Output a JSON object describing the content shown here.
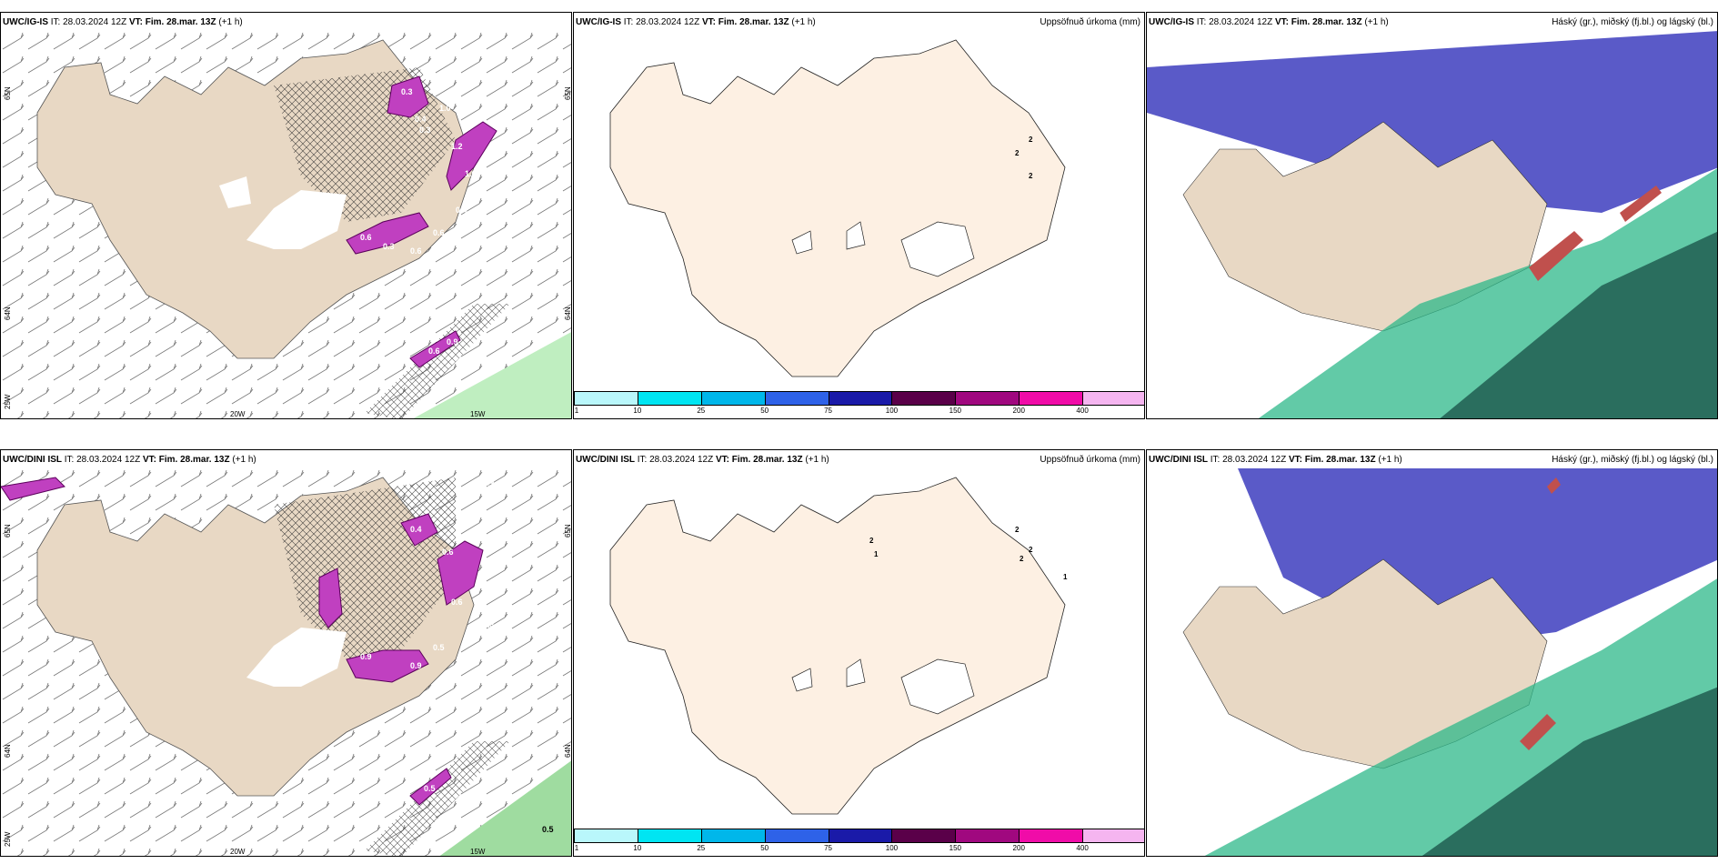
{
  "common": {
    "it": "IT: 28.03.2024 12Z",
    "vt_label": "VT:",
    "vt": "Fim. 28.mar. 13Z",
    "lead": "(+1 h)"
  },
  "rows": [
    {
      "model": "UWC/IG-IS"
    },
    {
      "model": "UWC/DINI ISL"
    }
  ],
  "precip_title": "Uppsöfnuð úrkoma (mm)",
  "cloud_title": "Háský (gr.), miðský (fj.bl.) og lágský (bl.)",
  "lon_labels": [
    "20W",
    "15W"
  ],
  "lat_labels_left": [
    "65N",
    "64N",
    "25W"
  ],
  "lat_labels_right": [
    "65N",
    "64N"
  ],
  "colorbar": {
    "ticks": [
      "1",
      "10",
      "25",
      "50",
      "75",
      "100",
      "150",
      "200",
      "400"
    ],
    "colors": [
      "#b9f7fb",
      "#00e5f2",
      "#00b7ea",
      "#2e62e8",
      "#1a1aa8",
      "#5a0049",
      "#a0087f",
      "#f00ca8",
      "#f5b5f0"
    ]
  },
  "snow_labels_top": [
    "0.3",
    "1.0",
    "0.4",
    "0.3",
    "1.6",
    "1.2",
    "0.6",
    "0.6",
    "0.3",
    "0.6",
    "0.4",
    "0.9",
    "0.6"
  ],
  "snow_labels_bottom": [
    "0.3",
    "0.4",
    "0.6",
    "0.9",
    "0.5",
    "0.9",
    "0.6",
    "0.3",
    "0.5",
    "0.5"
  ],
  "precip_values_top": [
    "2",
    "2",
    "2"
  ],
  "precip_values_bottom": [
    "2",
    "1",
    "2",
    "2",
    "2",
    "1"
  ],
  "colors": {
    "land": "#e8d8c4",
    "precip_land": "#fdf0e3",
    "snow": "#c040c0",
    "sea_green": "#bfeec0",
    "cloud_high": "#5a5ac8",
    "cloud_mid": "#2eb88a",
    "cloud_low": "#2a6e5e"
  }
}
